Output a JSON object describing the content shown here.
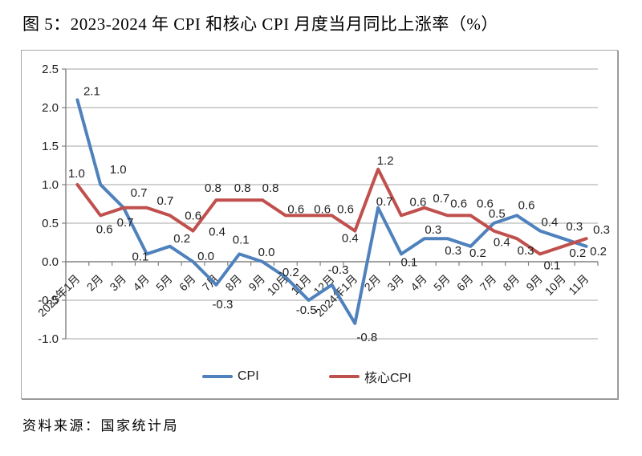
{
  "title": "图 5：2023-2024 年 CPI 和核心 CPI 月度当月同比上涨率（%）",
  "source": "资料来源：国家统计局",
  "legend": [
    {
      "label": "CPI",
      "color": "#4F81BD"
    },
    {
      "label": "核心CPI",
      "color": "#C0504D"
    }
  ],
  "chart_data": {
    "type": "line",
    "title": "2023-2024 年 CPI 和核心 CPI 月度当月同比上涨率（%）",
    "xlabel": "",
    "ylabel": "",
    "categories": [
      "2023年1月",
      "2月",
      "3月",
      "4月",
      "5月",
      "6月",
      "7月",
      "8月",
      "9月",
      "10月",
      "11月",
      "12月",
      "2024年1月",
      "2月",
      "3月",
      "4月",
      "5月",
      "6月",
      "7月",
      "8月",
      "9月",
      "10月",
      "11月"
    ],
    "series": [
      {
        "name": "CPI",
        "color": "#4F81BD",
        "values": [
          2.1,
          1.0,
          0.7,
          0.1,
          0.2,
          0.0,
          -0.3,
          0.1,
          0.0,
          -0.2,
          -0.5,
          -0.3,
          -0.8,
          0.7,
          0.1,
          0.3,
          0.3,
          0.2,
          0.5,
          0.6,
          0.4,
          0.3,
          0.2
        ]
      },
      {
        "name": "核心CPI",
        "color": "#C0504D",
        "values": [
          1.0,
          0.6,
          0.7,
          0.7,
          0.6,
          0.4,
          0.8,
          0.8,
          0.8,
          0.6,
          0.6,
          0.6,
          0.4,
          1.2,
          0.6,
          0.7,
          0.6,
          0.6,
          0.4,
          0.3,
          0.1,
          0.2,
          0.3
        ]
      }
    ],
    "ylim": [
      -1.0,
      2.5
    ],
    "yticks": [
      2.5,
      2.0,
      1.5,
      1.0,
      0.5,
      0.0,
      -0.5,
      -1.0
    ],
    "grid": true,
    "data_labels": true,
    "legend_position": "bottom",
    "grid_color": "#a6a6a6",
    "axis_color": "#808080",
    "label_color": "#1f1f1f"
  }
}
